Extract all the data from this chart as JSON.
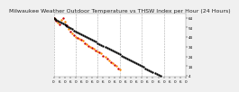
{
  "title": "Milwaukee Weather Outdoor Temperature vs THSW Index per Hour (24 Hours)",
  "background_color": "#f0f0f0",
  "plot_bg": "#ffffff",
  "grid_color": "#aaaaaa",
  "temp_color": "#000000",
  "thsw_red": "#cc0000",
  "thsw_orange": "#ff8800",
  "ylim": [
    3,
    68
  ],
  "xlim": [
    0,
    144
  ],
  "ytick_vals": [
    4,
    14,
    24,
    34,
    44,
    54,
    64
  ],
  "ytick_labels": [
    "4",
    "14",
    "24",
    "34",
    "44",
    "54",
    "64"
  ],
  "vlines": [
    0,
    24,
    48,
    72,
    96,
    120,
    144
  ],
  "xtick_positions": [
    0,
    6,
    12,
    18,
    24,
    30,
    36,
    42,
    48,
    54,
    60,
    66,
    72,
    78,
    84,
    90,
    96,
    102,
    108,
    114,
    120,
    126,
    132,
    138,
    144
  ],
  "xtick_labels": [
    "0",
    "6",
    "0",
    "6",
    "0",
    "6",
    "0",
    "6",
    "0",
    "6",
    "0",
    "6",
    "0",
    "6",
    "0",
    "6",
    "0",
    "6",
    "0",
    "6",
    "0",
    "6",
    "0",
    "6",
    "0"
  ],
  "title_fontsize": 4.5,
  "tick_fontsize": 3.0,
  "dot_size": 3,
  "temp_data": [
    [
      0,
      64
    ],
    [
      1,
      63
    ],
    [
      2,
      62
    ],
    [
      4,
      61
    ],
    [
      6,
      60
    ],
    [
      8,
      59
    ],
    [
      10,
      58
    ],
    [
      12,
      57
    ],
    [
      13,
      56
    ],
    [
      14,
      55
    ],
    [
      16,
      54
    ],
    [
      18,
      53
    ],
    [
      20,
      52
    ],
    [
      22,
      51
    ],
    [
      24,
      50
    ],
    [
      26,
      49
    ],
    [
      28,
      48
    ],
    [
      30,
      47
    ],
    [
      32,
      46
    ],
    [
      34,
      45
    ],
    [
      36,
      44
    ],
    [
      38,
      43
    ],
    [
      40,
      42
    ],
    [
      42,
      41
    ],
    [
      44,
      40
    ],
    [
      46,
      39
    ],
    [
      48,
      38
    ],
    [
      50,
      37
    ],
    [
      52,
      36
    ],
    [
      54,
      35
    ],
    [
      56,
      34
    ],
    [
      58,
      33
    ],
    [
      60,
      32
    ],
    [
      62,
      31
    ],
    [
      64,
      30
    ],
    [
      66,
      29
    ],
    [
      68,
      28
    ],
    [
      70,
      27
    ],
    [
      72,
      26
    ],
    [
      74,
      25
    ],
    [
      76,
      24
    ],
    [
      78,
      23
    ],
    [
      80,
      22
    ],
    [
      82,
      21
    ],
    [
      84,
      20
    ],
    [
      86,
      19
    ],
    [
      88,
      18
    ],
    [
      90,
      17
    ],
    [
      92,
      16
    ],
    [
      94,
      15
    ],
    [
      96,
      14
    ],
    [
      98,
      13
    ],
    [
      100,
      12
    ],
    [
      102,
      11
    ],
    [
      104,
      10
    ],
    [
      106,
      9
    ],
    [
      108,
      8
    ],
    [
      110,
      7
    ],
    [
      112,
      6
    ],
    [
      114,
      5
    ],
    [
      116,
      4
    ]
  ],
  "thsw_data": [
    [
      0,
      64
    ],
    [
      1,
      63
    ],
    [
      2,
      61
    ],
    [
      4,
      59
    ],
    [
      6,
      57
    ],
    [
      8,
      62
    ],
    [
      10,
      64
    ],
    [
      12,
      60
    ],
    [
      14,
      56
    ],
    [
      16,
      52
    ],
    [
      18,
      50
    ],
    [
      20,
      48
    ],
    [
      22,
      46
    ],
    [
      24,
      44
    ],
    [
      26,
      43
    ],
    [
      28,
      42
    ],
    [
      30,
      41
    ],
    [
      32,
      40
    ],
    [
      34,
      38
    ],
    [
      36,
      37
    ],
    [
      38,
      35
    ],
    [
      40,
      34
    ],
    [
      42,
      33
    ],
    [
      44,
      32
    ],
    [
      46,
      30
    ],
    [
      48,
      29
    ],
    [
      50,
      28
    ],
    [
      52,
      27
    ],
    [
      54,
      25
    ],
    [
      56,
      24
    ],
    [
      58,
      22
    ],
    [
      60,
      20
    ],
    [
      62,
      18
    ],
    [
      64,
      17
    ],
    [
      66,
      15
    ],
    [
      68,
      14
    ],
    [
      70,
      12
    ],
    [
      72,
      11
    ]
  ]
}
